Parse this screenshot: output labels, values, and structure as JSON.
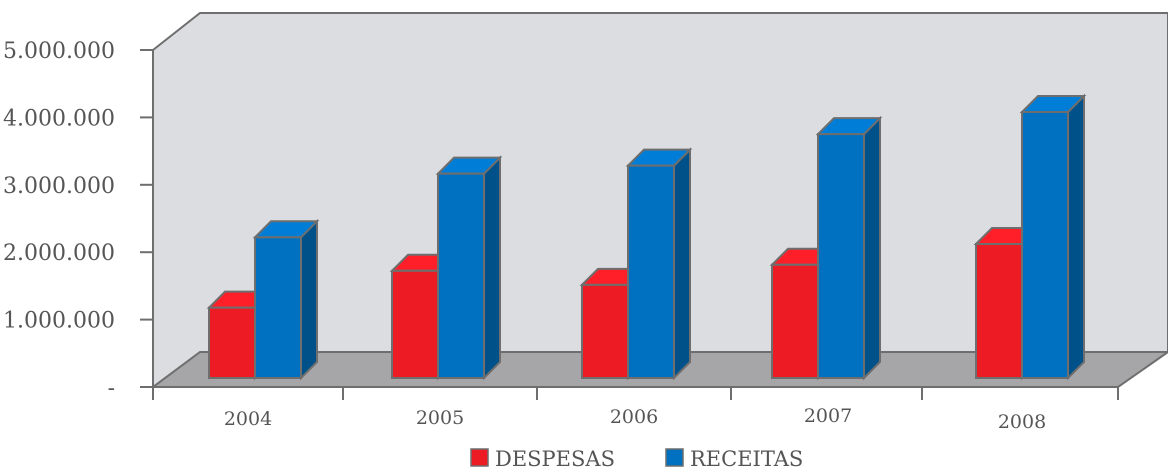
{
  "chart_data": {
    "type": "bar",
    "style": "3d-clustered-column",
    "categories": [
      "2004",
      "2005",
      "2006",
      "2007",
      "2008"
    ],
    "series": [
      {
        "name": "DESPESAS",
        "values": [
          1050000,
          1600000,
          1390000,
          1690000,
          2000000
        ],
        "color": "#ED1C24"
      },
      {
        "name": "RECEITAS",
        "values": [
          2100000,
          3050000,
          3170000,
          3640000,
          3970000
        ],
        "color": "#0070C0"
      }
    ],
    "y_ticks": [
      {
        "value": 0,
        "label": "-"
      },
      {
        "value": 1000000,
        "label": "1.000.000"
      },
      {
        "value": 2000000,
        "label": "2.000.000"
      },
      {
        "value": 3000000,
        "label": "3.000.000"
      },
      {
        "value": 4000000,
        "label": "4.000.000"
      },
      {
        "value": 5000000,
        "label": "5.000.000"
      }
    ],
    "ylim": [
      0,
      5000000
    ],
    "legend_position": "bottom",
    "colors": {
      "back_wall": "#DCDDE0",
      "floor": "#A6A6A9",
      "edge": "#6E6E6E"
    }
  }
}
